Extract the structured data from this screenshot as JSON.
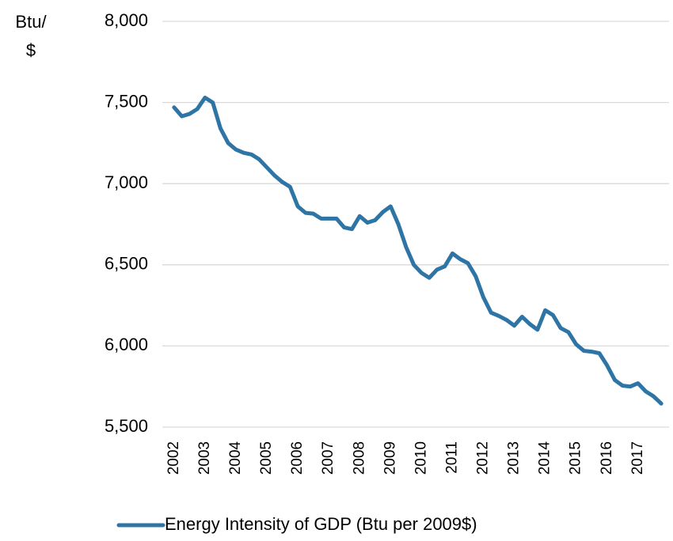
{
  "chart_data": {
    "type": "line",
    "y_label": "Btu/$",
    "categories": [
      "2002",
      null,
      null,
      null,
      "2003",
      null,
      null,
      null,
      "2004",
      null,
      null,
      null,
      "2005",
      null,
      null,
      null,
      "2006",
      null,
      null,
      null,
      "2007",
      null,
      null,
      null,
      "2008",
      null,
      null,
      null,
      "2009",
      null,
      null,
      null,
      "2010",
      null,
      null,
      null,
      "2011",
      null,
      null,
      null,
      "2012",
      null,
      null,
      null,
      "2013",
      null,
      null,
      null,
      "2014",
      null,
      null,
      null,
      "2015",
      null,
      null,
      null,
      "2016",
      null,
      null,
      null,
      "2017",
      null,
      null,
      null
    ],
    "series": [
      {
        "name": "Energy Intensity of GDP (Btu per 2009$)",
        "color": "#2e75a6",
        "values": [
          7470,
          7415,
          7430,
          7460,
          7530,
          7500,
          7340,
          7250,
          7210,
          7190,
          7180,
          7150,
          7100,
          7050,
          7010,
          6980,
          6860,
          6820,
          6815,
          6785,
          6785,
          6785,
          6730,
          6720,
          6800,
          6760,
          6775,
          6825,
          6860,
          6750,
          6610,
          6500,
          6450,
          6420,
          6470,
          6490,
          6570,
          6535,
          6510,
          6430,
          6300,
          6205,
          6185,
          6160,
          6125,
          6180,
          6135,
          6100,
          6220,
          6190,
          6110,
          6085,
          6010,
          5970,
          5965,
          5955,
          5880,
          5790,
          5755,
          5750,
          5770,
          5720,
          5690,
          5645
        ]
      }
    ],
    "ylim": [
      5500,
      8000
    ],
    "yticks": [
      {
        "value": 5500,
        "label": "5,500"
      },
      {
        "value": 6000,
        "label": "6,000"
      },
      {
        "value": 6500,
        "label": "6,500"
      },
      {
        "value": 7000,
        "label": "7,000"
      },
      {
        "value": 7500,
        "label": "7,500"
      },
      {
        "value": 8000,
        "label": "8,000"
      }
    ],
    "grid": true,
    "legend": "bottom"
  }
}
